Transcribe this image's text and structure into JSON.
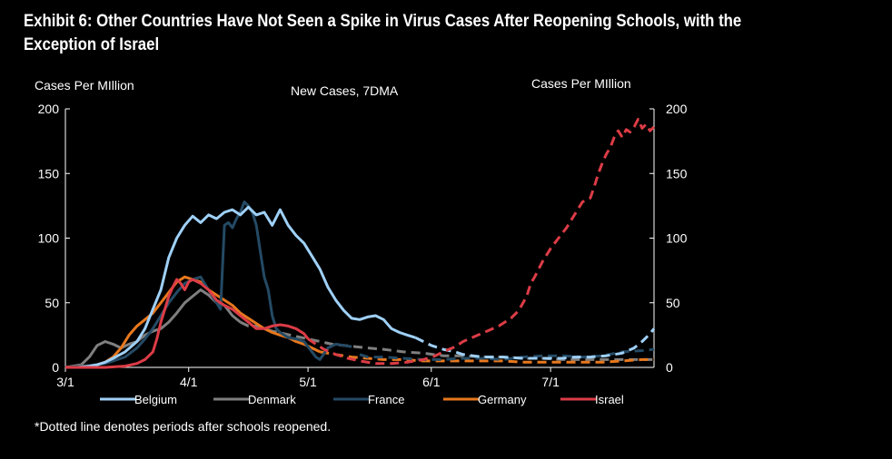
{
  "header": {
    "title_line1": "Exhibit 6: Other Countries Have Not Seen a Spike in Virus Cases After Reopening Schools, with the",
    "title_line2": "Exception of Israel"
  },
  "footnote": "*Dotted line denotes periods after schools reopened.",
  "chart_data": {
    "type": "line",
    "title": "New Cases, 7DMA",
    "ylabel_left": "Cases Per MIllion",
    "ylabel_right": "Cases Per MIllion",
    "ylim": [
      0,
      200
    ],
    "yticks": [
      0,
      50,
      100,
      150,
      200
    ],
    "x_ticks": [
      "3/1",
      "4/1",
      "5/1",
      "6/1",
      "7/1"
    ],
    "x_tick_days": [
      0,
      31,
      61,
      92,
      122
    ],
    "x_range_days": [
      0,
      148
    ],
    "grid": false,
    "legend_position": "bottom",
    "series": [
      {
        "name": "Belgium",
        "color": "#9fd0f7",
        "reopen_day": 88,
        "points": [
          [
            0,
            0
          ],
          [
            3,
            0
          ],
          [
            6,
            1
          ],
          [
            8,
            2
          ],
          [
            10,
            4
          ],
          [
            12,
            7
          ],
          [
            15,
            12
          ],
          [
            18,
            20
          ],
          [
            20,
            30
          ],
          [
            22,
            45
          ],
          [
            24,
            60
          ],
          [
            26,
            85
          ],
          [
            28,
            100
          ],
          [
            30,
            110
          ],
          [
            32,
            117
          ],
          [
            34,
            112
          ],
          [
            36,
            118
          ],
          [
            38,
            115
          ],
          [
            40,
            120
          ],
          [
            42,
            122
          ],
          [
            44,
            118
          ],
          [
            46,
            124
          ],
          [
            48,
            118
          ],
          [
            50,
            120
          ],
          [
            52,
            110
          ],
          [
            54,
            122
          ],
          [
            56,
            110
          ],
          [
            58,
            102
          ],
          [
            60,
            96
          ],
          [
            62,
            86
          ],
          [
            64,
            76
          ],
          [
            66,
            62
          ],
          [
            68,
            52
          ],
          [
            70,
            44
          ],
          [
            72,
            38
          ],
          [
            74,
            37
          ],
          [
            76,
            39
          ],
          [
            78,
            40
          ],
          [
            80,
            37
          ],
          [
            82,
            30
          ],
          [
            84,
            27
          ],
          [
            86,
            25
          ],
          [
            88,
            23
          ],
          [
            90,
            20
          ],
          [
            92,
            17
          ],
          [
            95,
            14
          ],
          [
            98,
            12
          ],
          [
            100,
            10
          ],
          [
            105,
            8
          ],
          [
            110,
            8
          ],
          [
            115,
            7
          ],
          [
            120,
            7
          ],
          [
            125,
            7
          ],
          [
            128,
            8
          ],
          [
            132,
            8
          ],
          [
            136,
            9
          ],
          [
            140,
            11
          ],
          [
            143,
            15
          ],
          [
            145,
            20
          ],
          [
            147,
            26
          ],
          [
            148,
            30
          ]
        ]
      },
      {
        "name": "Denmark",
        "color": "#7f7f7f",
        "reopen_day": 44,
        "points": [
          [
            0,
            0
          ],
          [
            4,
            2
          ],
          [
            6,
            8
          ],
          [
            8,
            17
          ],
          [
            10,
            20
          ],
          [
            12,
            18
          ],
          [
            14,
            15
          ],
          [
            16,
            18
          ],
          [
            18,
            20
          ],
          [
            20,
            25
          ],
          [
            22,
            28
          ],
          [
            24,
            30
          ],
          [
            26,
            35
          ],
          [
            28,
            42
          ],
          [
            30,
            50
          ],
          [
            32,
            55
          ],
          [
            34,
            60
          ],
          [
            36,
            56
          ],
          [
            38,
            50
          ],
          [
            40,
            48
          ],
          [
            42,
            40
          ],
          [
            44,
            35
          ],
          [
            46,
            32
          ],
          [
            48,
            32
          ],
          [
            50,
            30
          ],
          [
            52,
            28
          ],
          [
            55,
            26
          ],
          [
            58,
            24
          ],
          [
            61,
            22
          ],
          [
            64,
            20
          ],
          [
            67,
            18
          ],
          [
            70,
            17
          ],
          [
            73,
            16
          ],
          [
            76,
            15
          ],
          [
            80,
            14
          ],
          [
            85,
            12
          ],
          [
            90,
            11
          ],
          [
            95,
            9
          ],
          [
            100,
            9
          ],
          [
            105,
            8
          ],
          [
            110,
            8
          ],
          [
            115,
            7
          ],
          [
            120,
            7
          ],
          [
            125,
            6
          ],
          [
            130,
            6
          ],
          [
            135,
            6
          ],
          [
            140,
            6
          ],
          [
            145,
            6
          ],
          [
            148,
            6
          ]
        ]
      },
      {
        "name": "France",
        "color": "#244a64",
        "reopen_day": 73,
        "points": [
          [
            0,
            0
          ],
          [
            5,
            1
          ],
          [
            10,
            3
          ],
          [
            15,
            8
          ],
          [
            18,
            15
          ],
          [
            20,
            22
          ],
          [
            22,
            30
          ],
          [
            24,
            40
          ],
          [
            26,
            50
          ],
          [
            28,
            58
          ],
          [
            30,
            65
          ],
          [
            32,
            68
          ],
          [
            34,
            70
          ],
          [
            36,
            60
          ],
          [
            38,
            50
          ],
          [
            39,
            45
          ],
          [
            40,
            110
          ],
          [
            41,
            112
          ],
          [
            42,
            108
          ],
          [
            43,
            115
          ],
          [
            44,
            120
          ],
          [
            45,
            128
          ],
          [
            46,
            125
          ],
          [
            47,
            120
          ],
          [
            48,
            110
          ],
          [
            49,
            90
          ],
          [
            50,
            70
          ],
          [
            51,
            60
          ],
          [
            52,
            40
          ],
          [
            53,
            30
          ],
          [
            54,
            27
          ],
          [
            55,
            25
          ],
          [
            56,
            23
          ],
          [
            58,
            22
          ],
          [
            60,
            20
          ],
          [
            62,
            12
          ],
          [
            63,
            8
          ],
          [
            64,
            6
          ],
          [
            66,
            15
          ],
          [
            68,
            18
          ],
          [
            70,
            17
          ],
          [
            72,
            16
          ],
          [
            74,
            10
          ],
          [
            76,
            8
          ],
          [
            78,
            8
          ],
          [
            80,
            8
          ],
          [
            85,
            7
          ],
          [
            90,
            6
          ],
          [
            95,
            6
          ],
          [
            100,
            7
          ],
          [
            105,
            7
          ],
          [
            110,
            6
          ],
          [
            115,
            8
          ],
          [
            120,
            9
          ],
          [
            125,
            9
          ],
          [
            130,
            8
          ],
          [
            135,
            9
          ],
          [
            140,
            12
          ],
          [
            145,
            13
          ],
          [
            148,
            14
          ]
        ]
      },
      {
        "name": "Germany",
        "color": "#e8781e",
        "reopen_day": 64,
        "points": [
          [
            0,
            0
          ],
          [
            5,
            1
          ],
          [
            8,
            2
          ],
          [
            10,
            4
          ],
          [
            12,
            8
          ],
          [
            14,
            15
          ],
          [
            16,
            25
          ],
          [
            18,
            32
          ],
          [
            20,
            37
          ],
          [
            22,
            42
          ],
          [
            24,
            50
          ],
          [
            26,
            58
          ],
          [
            28,
            66
          ],
          [
            30,
            70
          ],
          [
            32,
            68
          ],
          [
            34,
            66
          ],
          [
            36,
            60
          ],
          [
            38,
            56
          ],
          [
            40,
            52
          ],
          [
            42,
            48
          ],
          [
            44,
            42
          ],
          [
            46,
            38
          ],
          [
            48,
            34
          ],
          [
            50,
            30
          ],
          [
            52,
            27
          ],
          [
            54,
            25
          ],
          [
            56,
            23
          ],
          [
            58,
            20
          ],
          [
            60,
            18
          ],
          [
            62,
            15
          ],
          [
            64,
            12
          ],
          [
            68,
            10
          ],
          [
            72,
            8
          ],
          [
            76,
            7
          ],
          [
            80,
            6
          ],
          [
            85,
            6
          ],
          [
            90,
            5
          ],
          [
            95,
            5
          ],
          [
            100,
            5
          ],
          [
            105,
            5
          ],
          [
            110,
            5
          ],
          [
            115,
            4
          ],
          [
            120,
            4
          ],
          [
            125,
            4
          ],
          [
            130,
            4
          ],
          [
            135,
            4
          ],
          [
            140,
            5
          ],
          [
            145,
            6
          ],
          [
            148,
            6
          ]
        ]
      },
      {
        "name": "Israel",
        "color": "#dc3c46",
        "reopen_day": 61,
        "points": [
          [
            0,
            0
          ],
          [
            10,
            0
          ],
          [
            15,
            1
          ],
          [
            18,
            3
          ],
          [
            20,
            6
          ],
          [
            22,
            12
          ],
          [
            23,
            22
          ],
          [
            24,
            35
          ],
          [
            25,
            45
          ],
          [
            26,
            55
          ],
          [
            27,
            62
          ],
          [
            28,
            68
          ],
          [
            29,
            65
          ],
          [
            30,
            60
          ],
          [
            31,
            66
          ],
          [
            32,
            68
          ],
          [
            34,
            65
          ],
          [
            36,
            60
          ],
          [
            38,
            52
          ],
          [
            40,
            48
          ],
          [
            42,
            45
          ],
          [
            44,
            40
          ],
          [
            46,
            35
          ],
          [
            48,
            30
          ],
          [
            50,
            30
          ],
          [
            52,
            32
          ],
          [
            54,
            33
          ],
          [
            56,
            32
          ],
          [
            58,
            30
          ],
          [
            60,
            26
          ],
          [
            61,
            22
          ],
          [
            63,
            18
          ],
          [
            65,
            14
          ],
          [
            68,
            10
          ],
          [
            71,
            7
          ],
          [
            74,
            5
          ],
          [
            78,
            3
          ],
          [
            82,
            3
          ],
          [
            86,
            4
          ],
          [
            90,
            6
          ],
          [
            93,
            9
          ],
          [
            95,
            12
          ],
          [
            98,
            16
          ],
          [
            100,
            20
          ],
          [
            103,
            24
          ],
          [
            106,
            28
          ],
          [
            109,
            32
          ],
          [
            112,
            38
          ],
          [
            114,
            44
          ],
          [
            116,
            55
          ],
          [
            117,
            65
          ],
          [
            118,
            70
          ],
          [
            120,
            82
          ],
          [
            122,
            92
          ],
          [
            124,
            100
          ],
          [
            126,
            108
          ],
          [
            128,
            118
          ],
          [
            130,
            128
          ],
          [
            132,
            131
          ],
          [
            133,
            140
          ],
          [
            134,
            150
          ],
          [
            135,
            158
          ],
          [
            136,
            165
          ],
          [
            137,
            170
          ],
          [
            138,
            178
          ],
          [
            139,
            183
          ],
          [
            140,
            178
          ],
          [
            141,
            184
          ],
          [
            142,
            182
          ],
          [
            143,
            186
          ],
          [
            144,
            192
          ],
          [
            145,
            185
          ],
          [
            146,
            188
          ],
          [
            147,
            183
          ],
          [
            148,
            186
          ]
        ]
      }
    ]
  }
}
